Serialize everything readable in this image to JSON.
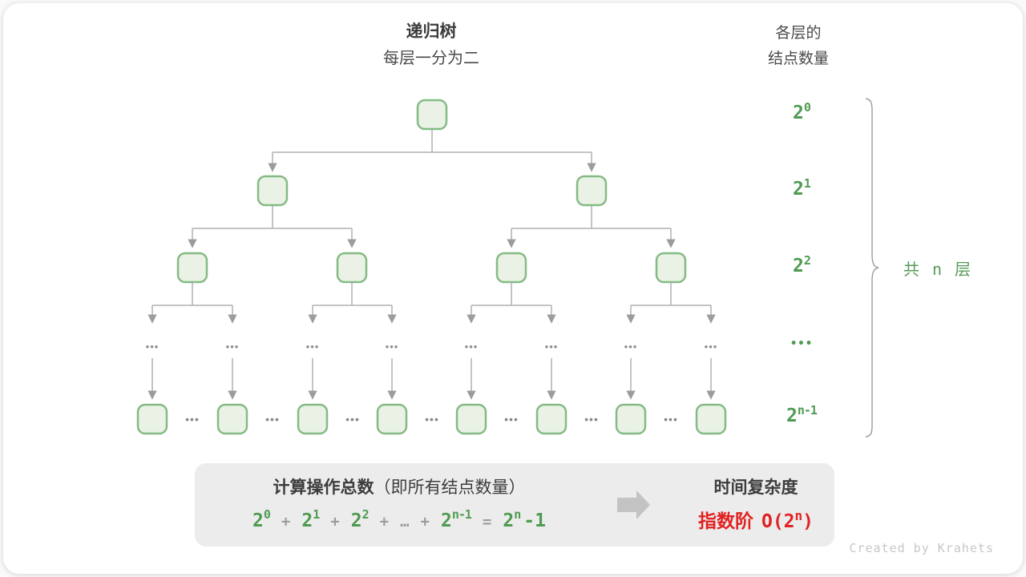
{
  "header": {
    "title": "递归树",
    "subtitle": "每层一分为二",
    "right_line1": "各层的",
    "right_line2": "结点数量"
  },
  "tree": {
    "ellipsis": "•••",
    "levels": [
      {
        "base": "2",
        "sup": "0",
        "node_count": 1
      },
      {
        "base": "2",
        "sup": "1",
        "node_count": 2
      },
      {
        "base": "2",
        "sup": "2",
        "node_count": 4
      },
      {
        "label": "•••"
      },
      {
        "base": "2",
        "sup": "n-1",
        "node_count": 8
      }
    ],
    "brace_label": "共 n 层"
  },
  "summary": {
    "title_bold": "计算操作总数",
    "title_paren": "（即所有结点数量）",
    "formula": [
      {
        "text": "2",
        "sup": "0",
        "color": "green"
      },
      {
        "text": "+",
        "color": "gray"
      },
      {
        "text": "2",
        "sup": "1",
        "color": "green"
      },
      {
        "text": "+",
        "color": "gray"
      },
      {
        "text": "2",
        "sup": "2",
        "color": "green"
      },
      {
        "text": "+",
        "color": "gray"
      },
      {
        "text": "…",
        "color": "gray"
      },
      {
        "text": "+",
        "color": "gray"
      },
      {
        "text": "2",
        "sup": "n-1",
        "color": "green"
      },
      {
        "text": "=",
        "color": "gray"
      },
      {
        "text": "2",
        "sup": "n",
        "color": "green"
      },
      {
        "text": "-1",
        "color": "green",
        "tight": true
      }
    ],
    "right_title": "时间复杂度",
    "complexity_name": "指数阶",
    "big_o_open": "O(2",
    "big_o_sup": "n",
    "big_o_close": ")"
  },
  "footer": {
    "credit": "Created by Krahets"
  },
  "colors": {
    "green_text": "#4f9b51",
    "node_stroke": "#84bb84",
    "node_fill": "#e9f2e5",
    "line_gray": "#b0b0b0",
    "arrowhead_gray": "#9c9c9c",
    "box_bg": "#ececec",
    "red_text": "#e12222",
    "dark_text": "#3c3c3c",
    "credit_gray": "#c7c7c7"
  }
}
